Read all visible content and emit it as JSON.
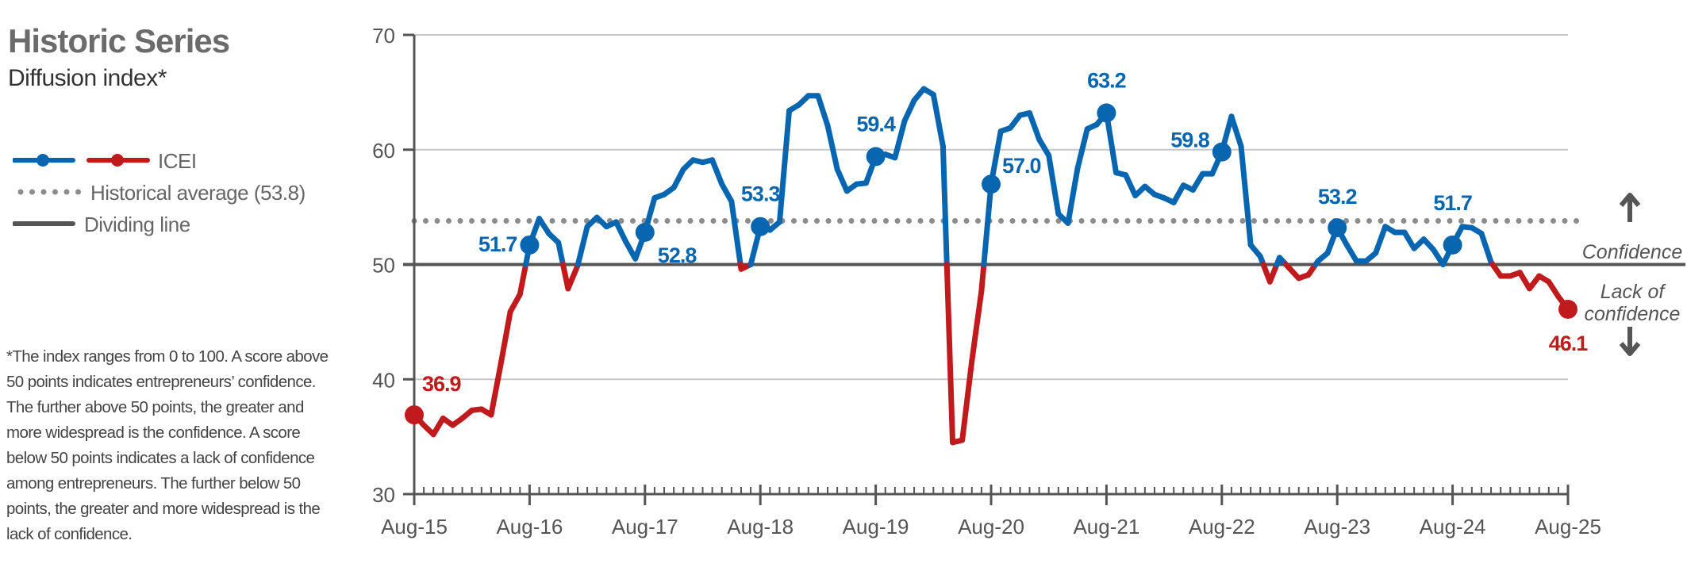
{
  "header": {
    "title": "Historic Series",
    "subtitle": "Diffusion index*"
  },
  "legend": {
    "series_label": "ICEI",
    "average_label": "Historical average (53.8)",
    "dividing_label": "Dividing line"
  },
  "footnote": "*The index ranges from 0 to 100. A score above 50 points indicates entrepreneurs’ confidence. The further above 50 points, the greater and more widespread is the confidence. A score below 50 points indicates a lack of confidence among entrepreneurs. The further below 50 points, the greater and more widespread is the lack of confidence.",
  "annotations": {
    "confidence": "Confidence",
    "lack_line1": "Lack of",
    "lack_line2": "confidence",
    "up_icon": "arrow-up-icon",
    "down_icon": "arrow-down-icon"
  },
  "colors": {
    "above": "#0866b0",
    "below": "#c01a1c",
    "average": "#8c8c8c",
    "dividing": "#555555",
    "grid": "#c8c8c8"
  },
  "chart_data": {
    "type": "line",
    "title": "Historic Series",
    "subtitle": "Diffusion index*",
    "x_start": "Aug-15",
    "x_end": "Aug-25",
    "frequency": "monthly",
    "x_tick_labels": [
      "Aug-15",
      "Aug-16",
      "Aug-17",
      "Aug-18",
      "Aug-19",
      "Aug-20",
      "Aug-21",
      "Aug-22",
      "Aug-23",
      "Aug-24",
      "Aug-25"
    ],
    "y_ticks": [
      30,
      40,
      50,
      60,
      70
    ],
    "ylim": [
      30,
      70
    ],
    "grid": "horizontal",
    "historical_average": 53.8,
    "dividing_line": 50,
    "series": [
      {
        "name": "ICEI",
        "values": [
          36.9,
          36.0,
          35.2,
          36.6,
          36.0,
          36.6,
          37.3,
          37.4,
          36.9,
          41.3,
          45.9,
          47.4,
          51.7,
          54.0,
          52.7,
          51.9,
          47.9,
          49.9,
          53.3,
          54.1,
          53.3,
          53.7,
          52.0,
          50.5,
          52.8,
          55.8,
          56.1,
          56.7,
          58.3,
          59.1,
          58.9,
          59.1,
          57.0,
          55.5,
          49.6,
          50.0,
          53.3,
          53.0,
          53.7,
          63.4,
          63.9,
          64.7,
          64.7,
          62.1,
          58.3,
          56.4,
          57.0,
          57.1,
          59.4,
          59.6,
          59.3,
          62.5,
          64.3,
          65.3,
          64.8,
          60.3,
          34.5,
          34.7,
          41.6,
          47.7,
          57.0,
          61.6,
          61.9,
          63.0,
          63.2,
          60.9,
          59.5,
          54.4,
          53.6,
          58.4,
          61.8,
          62.2,
          63.2,
          58.0,
          57.8,
          56.0,
          56.8,
          56.1,
          55.8,
          55.4,
          56.9,
          56.5,
          57.9,
          57.9,
          59.8,
          62.9,
          60.3,
          51.7,
          50.7,
          48.5,
          50.6,
          49.7,
          48.8,
          49.1,
          50.3,
          51.0,
          53.2,
          51.7,
          50.3,
          50.3,
          51.0,
          53.3,
          52.8,
          52.8,
          51.4,
          52.2,
          51.3,
          50.0,
          51.7,
          53.3,
          53.2,
          52.7,
          50.2,
          49.0,
          49.0,
          49.3,
          47.9,
          49.0,
          48.5,
          47.2,
          46.1
        ]
      }
    ],
    "data_labels": [
      {
        "index": 0,
        "text": "36.9"
      },
      {
        "index": 12,
        "text": "51.7"
      },
      {
        "index": 24,
        "text": "52.8"
      },
      {
        "index": 36,
        "text": "53.3"
      },
      {
        "index": 48,
        "text": "59.4"
      },
      {
        "index": 60,
        "text": "57.0"
      },
      {
        "index": 72,
        "text": "63.2"
      },
      {
        "index": 84,
        "text": "59.8"
      },
      {
        "index": 96,
        "text": "53.2"
      },
      {
        "index": 108,
        "text": "51.7"
      },
      {
        "index": 120,
        "text": "46.1"
      }
    ]
  }
}
